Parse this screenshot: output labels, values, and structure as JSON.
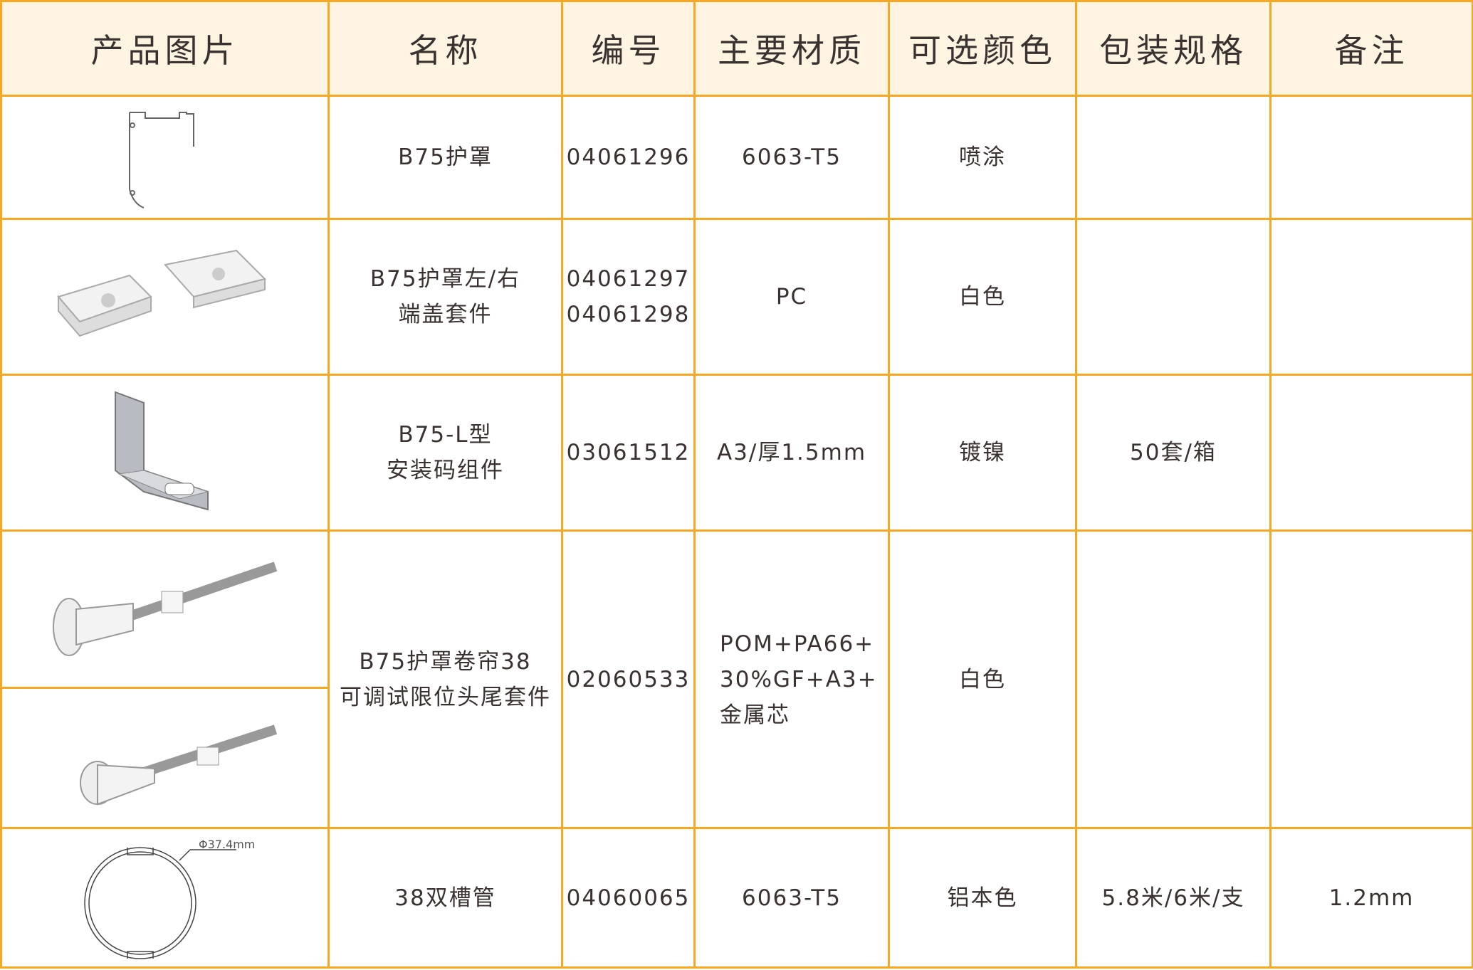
{
  "header": [
    "产品图片",
    "名称",
    "编号",
    "主要材质",
    "可选颜色",
    "包装规格",
    "备注"
  ],
  "rows": [
    {
      "image": "b75-cover-profile",
      "name": "B75护罩",
      "code": "04061296",
      "material": "6063-T5",
      "color": "喷涂",
      "package": "",
      "note": ""
    },
    {
      "image": "end-cap-kit",
      "name": [
        "B75护罩左/右",
        "端盖套件"
      ],
      "code": [
        "04061297",
        "04061298"
      ],
      "material": "PC",
      "color": "白色",
      "package": "",
      "note": ""
    },
    {
      "image": "l-bracket",
      "name": [
        "B75-L型",
        "安装码组件"
      ],
      "code": "03061512",
      "material": "A3/厚1.5mm",
      "color": "镀镍",
      "package": "50套/箱",
      "note": ""
    },
    {
      "image": [
        "limit-head-kit-1",
        "limit-head-kit-2"
      ],
      "name": [
        "B75护罩卷帘38",
        "可调试限位头尾套件"
      ],
      "code": "02060533",
      "material": [
        "POM+PA66+",
        "30%GF+A3+",
        "金属芯"
      ],
      "color": "白色",
      "package": "",
      "note": ""
    },
    {
      "image": "double-groove-tube",
      "dimension_label": "Φ37.4mm",
      "name": "38双槽管",
      "code": "04060065",
      "material": "6063-T5",
      "color": "铝本色",
      "package": "5.8米/6米/支",
      "note": "1.2mm"
    }
  ],
  "colors": {
    "border": "#f5a823",
    "header_bg": "#fff4e2"
  }
}
